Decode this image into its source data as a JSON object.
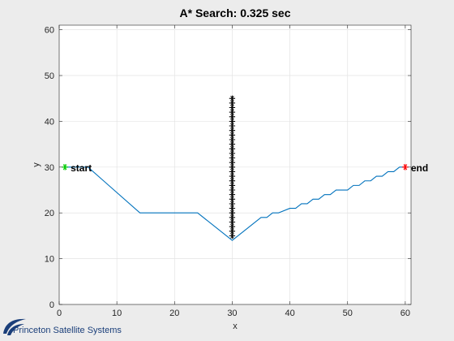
{
  "chart_data": {
    "type": "line",
    "title": "A* Search: 0.325 sec",
    "xlabel": "x",
    "ylabel": "y",
    "xlim": [
      0,
      61
    ],
    "ylim": [
      0,
      61
    ],
    "xticks": [
      0,
      10,
      20,
      30,
      40,
      50,
      60
    ],
    "yticks": [
      0,
      10,
      20,
      30,
      40,
      50,
      60
    ],
    "grid": true,
    "series": [
      {
        "type": "line",
        "color": "#0072BD",
        "x": [
          1,
          5,
          14,
          24,
          30,
          35,
          36,
          37,
          38,
          40,
          41,
          42,
          43,
          44,
          45,
          46,
          47,
          48,
          49,
          50,
          51,
          52,
          53,
          54,
          55,
          56,
          57,
          58,
          59,
          60
        ],
        "y": [
          30,
          30,
          20,
          20,
          14,
          19,
          19,
          20,
          20,
          21,
          21,
          22,
          22,
          23,
          23,
          24,
          24,
          25,
          25,
          25,
          26,
          26,
          27,
          27,
          28,
          28,
          29,
          29,
          30,
          30
        ]
      },
      {
        "type": "scatter",
        "marker": "asterisk",
        "color": "#000000",
        "x": [
          30,
          30,
          30,
          30,
          30,
          30,
          30,
          30,
          30,
          30,
          30,
          30,
          30,
          30,
          30,
          30,
          30,
          30,
          30,
          30,
          30,
          30,
          30,
          30,
          30,
          30,
          30,
          30,
          30,
          30,
          30
        ],
        "y": [
          15,
          16,
          17,
          18,
          19,
          20,
          21,
          22,
          23,
          24,
          25,
          26,
          27,
          28,
          29,
          30,
          31,
          32,
          33,
          34,
          35,
          36,
          37,
          38,
          39,
          40,
          41,
          42,
          43,
          44,
          45
        ]
      }
    ],
    "points": [
      {
        "label": "start",
        "x": 1,
        "y": 30,
        "color": "#00CC00"
      },
      {
        "label": "end",
        "x": 60,
        "y": 30,
        "color": "#FF0000"
      }
    ]
  },
  "logo": {
    "text": "Princeton Satellite Systems"
  },
  "colors": {
    "figure_bg": "#ececec",
    "axes_bg": "#ffffff",
    "grid": "#e3e3e3",
    "axis": "#262626"
  }
}
